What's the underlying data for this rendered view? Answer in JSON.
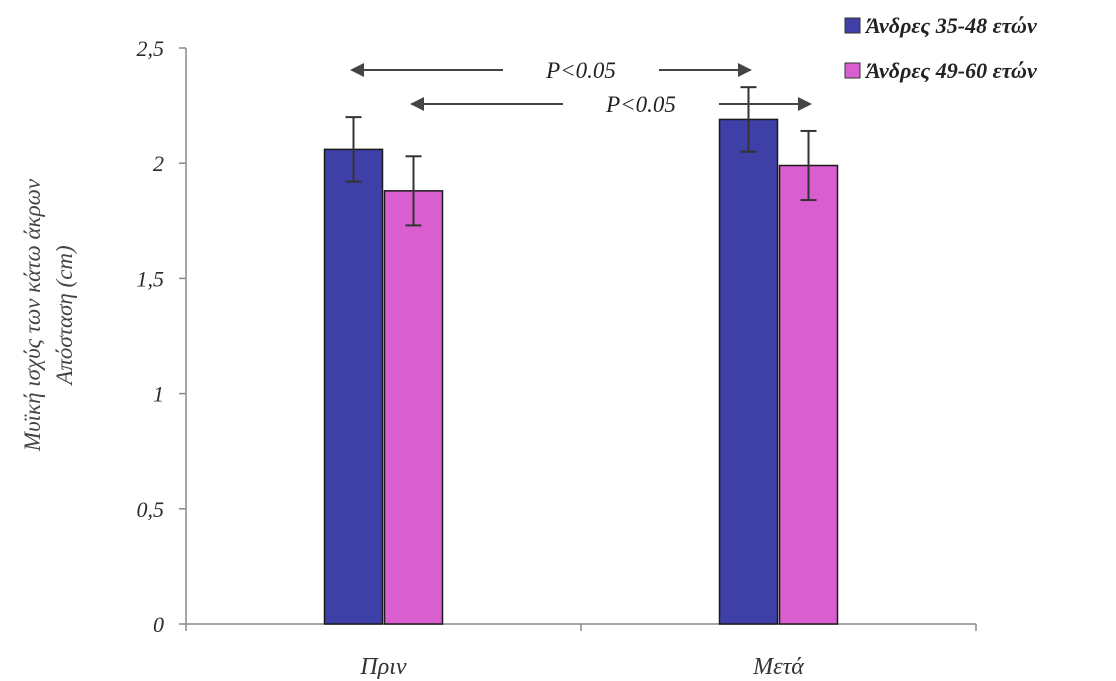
{
  "chart_data": {
    "type": "bar",
    "categories": [
      "Πριν",
      "Μετά"
    ],
    "series": [
      {
        "name": "Άνδρες 35-48 ετών",
        "values": [
          2.06,
          2.19
        ],
        "errors": [
          0.14,
          0.14
        ],
        "color": "#3f3fa8"
      },
      {
        "name": "Άνδρες 49-60 ετών",
        "values": [
          1.88,
          1.99
        ],
        "errors": [
          0.15,
          0.15
        ],
        "color": "#d95ed0"
      }
    ],
    "ylabel_line1": "Μυϊκή ισχύς των κάτω άκρων",
    "ylabel_line2": "Απόσταση (cm)",
    "ylim": [
      0,
      2.5
    ],
    "yticks": [
      0,
      0.5,
      1,
      1.5,
      2,
      2.5
    ],
    "ytick_labels": [
      "0",
      "0,5",
      "1",
      "1,5",
      "2",
      "2,5"
    ],
    "grid": false,
    "legend_position": "top-right",
    "annotations": [
      {
        "text": "P<0.05",
        "series_index": 0
      },
      {
        "text": "P<0.05",
        "series_index": 1
      }
    ]
  }
}
